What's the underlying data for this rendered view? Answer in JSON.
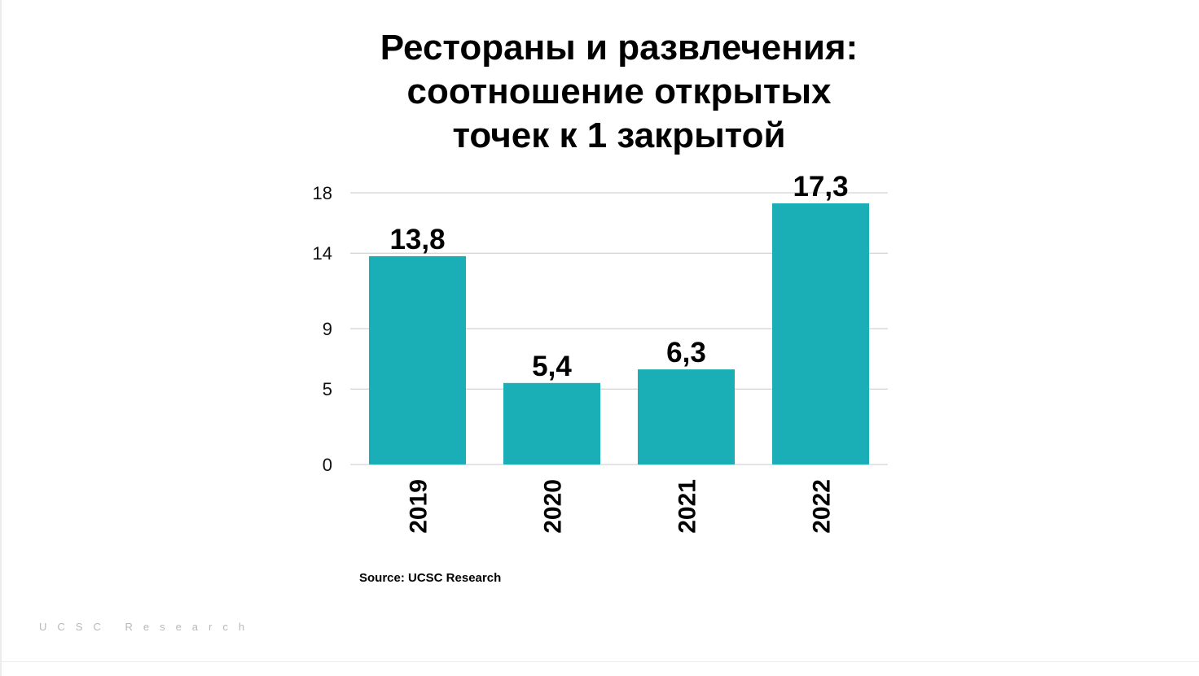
{
  "chart_data": {
    "type": "bar",
    "title_lines": [
      "Рестораны и развлечения:",
      "соотношение открытых",
      "точек к 1 закрытой"
    ],
    "categories": [
      "2019",
      "2020",
      "2021",
      "2022"
    ],
    "values": [
      13.8,
      5.4,
      6.3,
      17.3
    ],
    "data_labels": [
      "13,8",
      "5,4",
      "6,3",
      "17,3"
    ],
    "y_ticks": [
      0,
      5,
      9,
      14,
      18
    ],
    "ylim": [
      0,
      18
    ],
    "grid": true,
    "legend": "none",
    "bar_color": "#1aafb6",
    "grid_color": "#c8c8c8"
  },
  "source": "Source: UCSC Research",
  "watermark": "UCSC Research"
}
